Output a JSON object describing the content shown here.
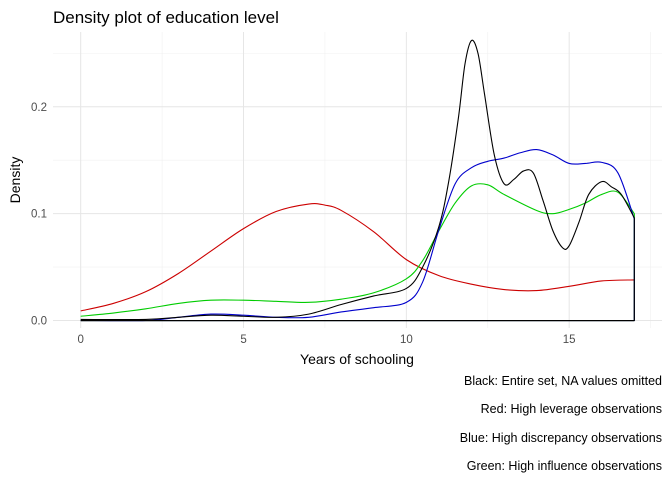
{
  "chart_data": {
    "type": "line",
    "title": "Density plot of education level",
    "xlabel": "Years of schooling",
    "ylabel": "Density",
    "xlim": [
      -0.85,
      17.85
    ],
    "ylim": [
      -0.007,
      0.27
    ],
    "x_ticks": [
      0,
      5,
      10,
      15
    ],
    "x_tick_labels": [
      "0",
      "5",
      "10",
      "15"
    ],
    "y_ticks": [
      0.0,
      0.1,
      0.2
    ],
    "y_tick_labels": [
      "0.0",
      "0.1",
      "0.2"
    ],
    "grid": true,
    "captions": [
      "Black: Entire set, NA values omitted",
      "Red: High leverage observations",
      "Blue: High discrepancy observations",
      "Green: High influence observations"
    ],
    "series": [
      {
        "color": "#000000",
        "x": [
          0,
          2,
          3,
          4,
          5,
          6,
          7,
          8,
          9,
          10,
          10.5,
          11,
          11.3,
          11.6,
          11.8,
          12,
          12.2,
          12.4,
          12.7,
          13,
          13.3,
          13.6,
          13.9,
          14.2,
          14.5,
          14.8,
          15,
          15.3,
          15.6,
          16,
          16.3,
          16.6,
          17
        ],
        "y": [
          0.001,
          0.001,
          0.003,
          0.005,
          0.004,
          0.003,
          0.006,
          0.015,
          0.023,
          0.03,
          0.05,
          0.088,
          0.13,
          0.19,
          0.24,
          0.262,
          0.25,
          0.212,
          0.155,
          0.128,
          0.132,
          0.14,
          0.138,
          0.112,
          0.084,
          0.068,
          0.07,
          0.092,
          0.118,
          0.13,
          0.125,
          0.118,
          0.096
        ]
      },
      {
        "color": "#cc0000",
        "x": [
          0,
          1,
          2,
          3,
          4,
          5,
          6,
          7,
          7.5,
          8,
          9,
          10,
          11,
          12,
          13,
          14,
          15,
          16,
          17
        ],
        "y": [
          0.009,
          0.016,
          0.027,
          0.044,
          0.065,
          0.086,
          0.102,
          0.109,
          0.108,
          0.103,
          0.083,
          0.057,
          0.042,
          0.034,
          0.029,
          0.028,
          0.032,
          0.037,
          0.038
        ]
      },
      {
        "color": "#0000cc",
        "x": [
          0,
          2,
          3,
          4,
          5,
          6,
          7,
          8,
          9,
          10,
          10.5,
          11,
          11.5,
          12,
          12.5,
          13,
          13.5,
          14,
          14.5,
          15,
          15.5,
          16,
          16.5,
          17
        ],
        "y": [
          0.0,
          0.0,
          0.003,
          0.006,
          0.005,
          0.003,
          0.003,
          0.008,
          0.012,
          0.017,
          0.036,
          0.085,
          0.128,
          0.143,
          0.149,
          0.152,
          0.157,
          0.16,
          0.155,
          0.147,
          0.147,
          0.148,
          0.138,
          0.095
        ]
      },
      {
        "color": "#00cc00",
        "x": [
          0,
          1,
          2,
          3,
          4,
          5,
          6,
          7,
          8,
          9,
          10,
          10.5,
          11,
          11.5,
          12,
          12.5,
          13,
          14,
          14.5,
          15,
          15.5,
          16,
          16.5,
          17
        ],
        "y": [
          0.004,
          0.007,
          0.011,
          0.016,
          0.019,
          0.019,
          0.018,
          0.017,
          0.02,
          0.026,
          0.039,
          0.056,
          0.084,
          0.11,
          0.126,
          0.127,
          0.118,
          0.103,
          0.1,
          0.104,
          0.11,
          0.118,
          0.12,
          0.1
        ]
      }
    ],
    "series_end_drop": "green series drops vertically to 0 at x = 17"
  }
}
